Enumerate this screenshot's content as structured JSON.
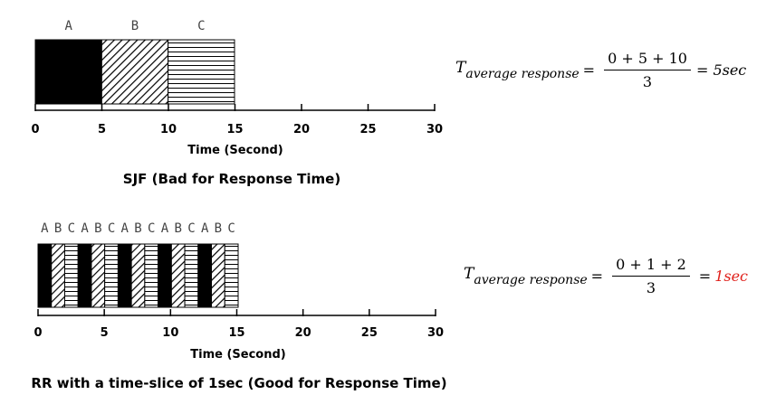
{
  "sjf": {
    "labels": [
      "A",
      "B",
      "C"
    ],
    "blocks": [
      {
        "job": "A",
        "start": 0,
        "end": 5,
        "pattern": "solid"
      },
      {
        "job": "B",
        "start": 5,
        "end": 10,
        "pattern": "diagonal"
      },
      {
        "job": "C",
        "start": 10,
        "end": 15,
        "pattern": "horizontal"
      }
    ],
    "ticks": [
      "0",
      "5",
      "10",
      "15",
      "20",
      "25",
      "30"
    ],
    "axis_title": "Time (Second)",
    "caption": "SJF (Bad for Response Time)",
    "formula": {
      "lhs_base": "T",
      "lhs_sub": "average response",
      "numerator": "0 + 5 + 10",
      "denominator": "3",
      "result": "= 5sec"
    }
  },
  "rr": {
    "labels": [
      "A",
      "B",
      "C",
      "A",
      "B",
      "C",
      "A",
      "B",
      "C",
      "A",
      "B",
      "C",
      "A",
      "B",
      "C"
    ],
    "cycle": [
      "solid",
      "diagonal",
      "horizontal"
    ],
    "slices": 15,
    "ticks": [
      "0",
      "5",
      "10",
      "15",
      "20",
      "25",
      "30"
    ],
    "axis_title": "Time (Second)",
    "caption": "RR with a time-slice of 1sec (Good for Response Time)",
    "formula": {
      "lhs_base": "T",
      "lhs_sub": "average response",
      "numerator": "0 + 1 + 2",
      "denominator": "3",
      "eq": "=",
      "result": "1sec"
    }
  },
  "colors": {
    "accent_red": "#e0201b"
  }
}
